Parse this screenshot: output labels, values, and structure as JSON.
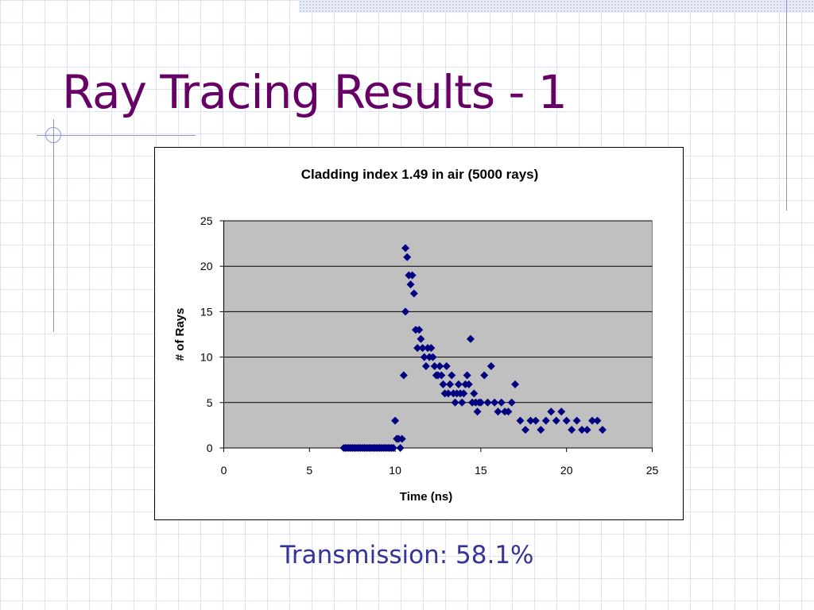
{
  "slide": {
    "title": "Ray Tracing Results - 1",
    "caption": "Transmission: 58.1%"
  },
  "theme": {
    "title_color": "#660066",
    "caption_color": "#333399",
    "plot_background": "#c0c0c0",
    "marker_color": "#000080"
  },
  "chart_data": {
    "type": "scatter",
    "title": "Cladding index 1.49 in air (5000 rays)",
    "xlabel": "Time (ns)",
    "ylabel": "# of Rays",
    "xlim": [
      0,
      25
    ],
    "ylim": [
      0,
      25
    ],
    "xticks": [
      "0",
      "5",
      "10",
      "15",
      "20",
      "25"
    ],
    "yticks": [
      "0",
      "5",
      "10",
      "15",
      "20",
      "25"
    ],
    "grid": "horizontal",
    "legend": "none",
    "marker": "diamond",
    "series": [
      {
        "x": [
          7.0,
          7.1,
          7.2,
          7.3,
          7.4,
          7.5,
          7.6,
          7.7,
          7.8,
          7.9,
          8.0,
          8.1,
          8.2,
          8.3,
          8.4,
          8.5,
          8.6,
          8.7,
          8.8,
          8.9,
          9.0,
          9.1,
          9.2,
          9.3,
          9.4,
          9.5,
          9.6,
          9.7,
          9.8,
          9.9,
          10.0,
          10.1,
          10.2,
          10.3,
          10.4,
          10.5,
          10.6,
          10.6,
          10.7,
          10.8,
          10.9,
          11.0,
          11.1,
          11.2,
          11.3,
          11.4,
          11.5,
          11.6,
          11.7,
          11.8,
          11.9,
          12.0,
          12.1,
          12.2,
          12.3,
          12.4,
          12.5,
          12.6,
          12.7,
          12.8,
          12.9,
          13.0,
          13.1,
          13.2,
          13.3,
          13.4,
          13.5,
          13.6,
          13.7,
          13.8,
          13.9,
          14.0,
          14.1,
          14.2,
          14.3,
          14.4,
          14.5,
          14.6,
          14.7,
          14.8,
          14.9,
          15.0,
          15.2,
          15.4,
          15.6,
          15.8,
          16.0,
          16.2,
          16.4,
          16.6,
          16.8,
          17.0,
          17.3,
          17.6,
          17.9,
          18.2,
          18.5,
          18.8,
          19.1,
          19.4,
          19.7,
          20.0,
          20.3,
          20.6,
          20.9,
          21.2,
          21.5,
          21.8,
          22.1
        ],
        "y": [
          0,
          0,
          0,
          0,
          0,
          0,
          0,
          0,
          0,
          0,
          0,
          0,
          0,
          0,
          0,
          0,
          0,
          0,
          0,
          0,
          0,
          0,
          0,
          0,
          0,
          0,
          0,
          0,
          0,
          0,
          3,
          1,
          1,
          0,
          1,
          8,
          15,
          22,
          21,
          19,
          18,
          19,
          17,
          13,
          11,
          13,
          12,
          11,
          10,
          9,
          11,
          10,
          11,
          10,
          9,
          8,
          8,
          9,
          8,
          7,
          6,
          9,
          6,
          7,
          8,
          6,
          5,
          6,
          7,
          6,
          5,
          6,
          7,
          8,
          7,
          12,
          5,
          6,
          5,
          4,
          5,
          5,
          8,
          5,
          9,
          5,
          4,
          5,
          4,
          4,
          5,
          7,
          3,
          2,
          3,
          3,
          2,
          3,
          4,
          3,
          4,
          3,
          2,
          3,
          2,
          2,
          3,
          3,
          2
        ]
      }
    ]
  }
}
